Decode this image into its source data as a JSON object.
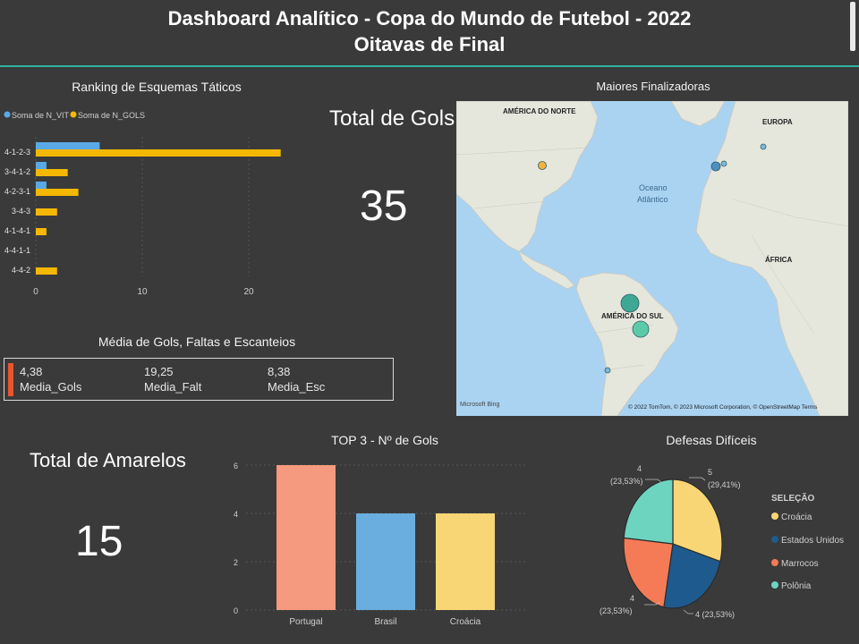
{
  "header": {
    "title_line1": "Dashboard Analítico - Copa do Mundo de Futebol - 2022",
    "title_line2": "Oitavas de Final"
  },
  "colors": {
    "background": "#3a3a3a",
    "accent_rule": "#2fb3a4",
    "series_blue": "#5aa9e6",
    "series_gold": "#f5b800",
    "map_ocean": "#aad3f2",
    "map_land": "#e5e6dc"
  },
  "ranking": {
    "title": "Ranking de Esquemas Táticos",
    "legend": [
      "Soma de N_VIT",
      "Soma de N_GOLS"
    ],
    "chart_data": {
      "type": "bar",
      "orientation": "horizontal",
      "categories": [
        "4-1-2-3",
        "3-4-1-2",
        "4-2-3-1",
        "3-4-3",
        "4-1-4-1",
        "4-4-1-1",
        "4-4-2"
      ],
      "series": [
        {
          "name": "Soma de N_VIT",
          "values": [
            6,
            1,
            1,
            0,
            0,
            0,
            0
          ]
        },
        {
          "name": "Soma de N_GOLS",
          "values": [
            23,
            3,
            4,
            2,
            1,
            0,
            2
          ]
        }
      ],
      "xticks": [
        "0",
        "10",
        "20"
      ],
      "xlim": [
        0,
        25
      ]
    }
  },
  "total_gols": {
    "title": "Total de Gols",
    "value": "35"
  },
  "media": {
    "title": "Média de Gols, Faltas e Escanteios",
    "items": [
      {
        "value": "4,38",
        "label": "Media_Gols"
      },
      {
        "value": "19,25",
        "label": "Media_Falt"
      },
      {
        "value": "8,38",
        "label": "Media_Esc"
      }
    ]
  },
  "map": {
    "title": "Maiores Finalizadoras",
    "labels": {
      "north_america": "AMÉRICA DO NORTE",
      "europe": "EUROPA",
      "ocean_1": "Oceano",
      "ocean_2": "Atlântico",
      "africa": "ÁFRICA",
      "south_america": "AMÉRICA DO SUL"
    },
    "attribution": "© 2022 TomTom, © 2023 Microsoft Corporation, © OpenStreetMap  Terms",
    "logo": "Microsoft Bing"
  },
  "total_amarelos": {
    "title": "Total de Amarelos",
    "value": "15"
  },
  "top3": {
    "title": "TOP 3 - Nº de Gols",
    "chart_data": {
      "type": "bar",
      "categories": [
        "Portugal",
        "Brasil",
        "Croácia"
      ],
      "values": [
        6,
        4,
        4
      ],
      "colors": [
        "#f59a7e",
        "#6aaee0",
        "#f9d675"
      ],
      "yticks": [
        "0",
        "2",
        "4",
        "6"
      ],
      "ylim": [
        0,
        6
      ]
    }
  },
  "defesas": {
    "title": "Defesas Difíceis",
    "legend_title": "SELEÇÃO",
    "legend": [
      "Croácia",
      "Estados Unidos",
      "Marrocos",
      "Polônia"
    ],
    "slice_labels": {
      "croacia_value": "5",
      "croacia_pct": "(29,41%)",
      "eua": "4 (23,53%)",
      "marrocos_value": "4",
      "marrocos_pct": "(23,53%)",
      "polonia_value": "4",
      "polonia_pct": "(23,53%)"
    },
    "chart_data": {
      "type": "pie",
      "categories": [
        "Croácia",
        "Estados Unidos",
        "Marrocos",
        "Polônia"
      ],
      "values": [
        5,
        4,
        4,
        4
      ],
      "colors": [
        "#f9d675",
        "#1f5a8e",
        "#f47b55",
        "#6dd4c0"
      ]
    }
  }
}
